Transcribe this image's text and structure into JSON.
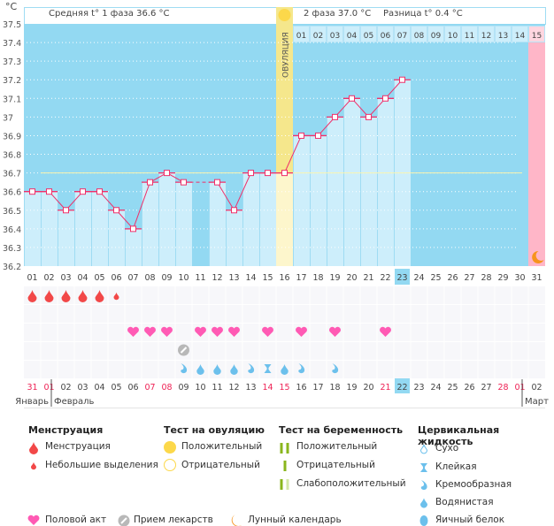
{
  "header": {
    "unit": "°C",
    "phase1": "Средняя t° 1 фаза 36.6 °C",
    "phase2": "2 фаза 37.0 °C",
    "diff": "Разница t° 0.4 °C",
    "ovulation_label": "ОВУЛЯЦИЯ"
  },
  "chart_data": {
    "type": "line",
    "ylim": [
      36.2,
      37.5
    ],
    "yticks": [
      "37.5",
      "37.4",
      "37.3",
      "37.2",
      "37.1",
      "37",
      "36.9",
      "36.8",
      "36.7",
      "36.6",
      "36.5",
      "36.4",
      "36.3",
      "36.2"
    ],
    "cycle_days": [
      "01",
      "02",
      "03",
      "04",
      "05",
      "06",
      "07",
      "08",
      "09",
      "10",
      "11",
      "12",
      "13",
      "14",
      "15",
      "16",
      "17",
      "18",
      "19",
      "20",
      "21",
      "22",
      "23",
      "24",
      "25",
      "26",
      "27",
      "28",
      "29",
      "30",
      "31"
    ],
    "temperatures": [
      36.6,
      36.6,
      36.5,
      36.6,
      36.6,
      36.5,
      36.4,
      36.65,
      36.7,
      36.65,
      null,
      36.65,
      36.5,
      36.7,
      36.7,
      36.7,
      36.9,
      36.9,
      37.0,
      37.1,
      37.0,
      37.1,
      37.2,
      null,
      null,
      null,
      null,
      null,
      null,
      null,
      null
    ],
    "coverline": 36.7,
    "ovulation_day": 16,
    "current_day": 23,
    "luteal_days": [
      "01",
      "02",
      "03",
      "04",
      "05",
      "06",
      "07",
      "08",
      "09",
      "10",
      "11",
      "12",
      "13",
      "14",
      "15"
    ],
    "grid": true
  },
  "calendar": {
    "dates": [
      "31",
      "01",
      "02",
      "03",
      "04",
      "05",
      "06",
      "07",
      "08",
      "09",
      "10",
      "11",
      "12",
      "13",
      "14",
      "15",
      "16",
      "17",
      "18",
      "19",
      "20",
      "21",
      "22",
      "23",
      "24",
      "25",
      "26",
      "27",
      "28",
      "01",
      "02"
    ],
    "weekend": [
      true,
      true,
      false,
      false,
      false,
      false,
      false,
      true,
      true,
      false,
      false,
      false,
      false,
      false,
      true,
      true,
      false,
      false,
      false,
      false,
      false,
      true,
      false,
      false,
      false,
      false,
      false,
      false,
      true,
      true,
      false
    ],
    "months": [
      "Январь",
      "Февраль",
      "Март"
    ]
  },
  "rows": {
    "menstruation": [
      "full",
      "full",
      "full",
      "full",
      "full",
      "spot",
      null,
      null,
      null,
      null,
      null,
      null,
      null,
      null,
      null,
      null,
      null,
      null,
      null,
      null,
      null,
      null,
      null,
      null,
      null,
      null,
      null,
      null,
      null,
      null,
      null
    ],
    "intercourse_days": [
      7,
      8,
      9,
      11,
      12,
      13,
      15,
      17,
      19,
      22
    ],
    "medication_days": [
      10
    ],
    "fluid": {
      "10": "creamy",
      "11": "watery",
      "12": "watery",
      "13": "watery",
      "14": "creamy",
      "15": "sticky",
      "16": "watery",
      "17": "creamy",
      "19": "creamy"
    }
  },
  "colors": {
    "bg": "#93d9f2",
    "bar": "#cdeefb",
    "line": "#f0306a",
    "ovulation": "#f5e78c",
    "pink": "#ffb6c8",
    "period": "#f24848",
    "heart": "#ff5ab4",
    "fluid": "#6cc0ec",
    "weekend": "#ee2255"
  },
  "legend": {
    "menstruation": {
      "title": "Менструация",
      "items": [
        "Менструация",
        "Небольшие выделения"
      ]
    },
    "ovulation_test": {
      "title": "Тест на овуляцию",
      "items": [
        "Положительный",
        "Отрицательный"
      ]
    },
    "pregnancy_test": {
      "title": "Тест на беременность",
      "items": [
        "Положительный",
        "Отрицательный",
        "Слабоположительный"
      ]
    },
    "cervical": {
      "title": "Цервикальная жидкость",
      "items": [
        "Сухо",
        "Клейкая",
        "Кремообразная",
        "Водянистая",
        "Яичный белок"
      ]
    },
    "other": [
      "Половой акт",
      "Прием лекарств",
      "Лунный календарь"
    ]
  }
}
